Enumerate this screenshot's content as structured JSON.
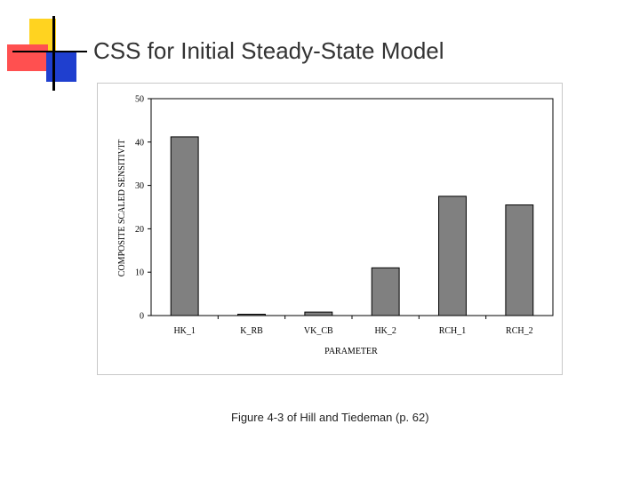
{
  "slide": {
    "title": "CSS for Initial Steady-State Model",
    "caption": "Figure 4-3 of Hill and Tiedeman (p. 62)"
  },
  "colors": {
    "bar_fill": "#808080",
    "bar_stroke": "#000000",
    "deco_yellow": "#ffd320",
    "deco_red": "#ff5050",
    "deco_blue": "#1f3fcf",
    "deco_line": "#000000"
  },
  "chart_data": {
    "type": "bar",
    "categories": [
      "HK_1",
      "K_RB",
      "VK_CB",
      "HK_2",
      "RCH_1",
      "RCH_2"
    ],
    "values": [
      41.2,
      0.3,
      0.8,
      11.0,
      27.5,
      25.5
    ],
    "title": "",
    "xlabel": "PARAMETER",
    "ylabel": "COMPOSITE SCALED SENSITIVIT",
    "ylim": [
      0,
      50
    ],
    "yticks": [
      0,
      10,
      20,
      30,
      40,
      50
    ],
    "grid": false,
    "legend": "none"
  }
}
